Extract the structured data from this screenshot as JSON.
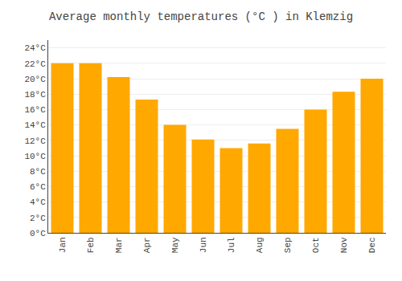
{
  "chart_data": {
    "type": "bar",
    "title": "Average monthly temperatures (°C ) in Klemzig",
    "categories": [
      "Jan",
      "Feb",
      "Mar",
      "Apr",
      "May",
      "Jun",
      "Jul",
      "Aug",
      "Sep",
      "Oct",
      "Nov",
      "Dec"
    ],
    "values": [
      22.0,
      22.0,
      20.2,
      17.3,
      14.0,
      12.1,
      11.0,
      11.6,
      13.5,
      16.0,
      18.3,
      20.0
    ],
    "color": "#FFA800",
    "ylim": [
      0,
      25
    ],
    "yticks": [
      {
        "value": 0,
        "label": "0°C"
      },
      {
        "value": 2,
        "label": "2°C"
      },
      {
        "value": 4,
        "label": "4°C"
      },
      {
        "value": 6,
        "label": "6°C"
      },
      {
        "value": 8,
        "label": "8°C"
      },
      {
        "value": 10,
        "label": "10°C"
      },
      {
        "value": 12,
        "label": "12°C"
      },
      {
        "value": 14,
        "label": "14°C"
      },
      {
        "value": 16,
        "label": "16°C"
      },
      {
        "value": 18,
        "label": "18°C"
      },
      {
        "value": 20,
        "label": "20°C"
      },
      {
        "value": 22,
        "label": "22°C"
      },
      {
        "value": 24,
        "label": "24°C"
      }
    ],
    "grid": true
  }
}
